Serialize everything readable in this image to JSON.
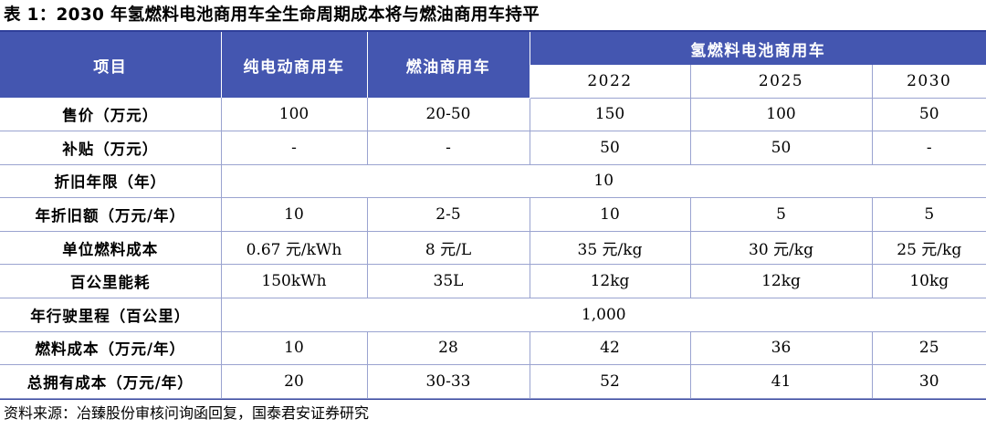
{
  "title": "表 1：2030 年氢燃料电池商用车全生命周期成本将与燃油商用车持平",
  "header": {
    "item": "项目",
    "ev": "纯电动商用车",
    "fuel": "燃油商用车",
    "hydrogen": "氢燃料电池商用车",
    "years": [
      "2022",
      "2025",
      "2030"
    ]
  },
  "rows": [
    {
      "label": "售价（万元）",
      "cells": [
        "100",
        "20-50",
        "150",
        "100",
        "50"
      ]
    },
    {
      "label": "补贴（万元）",
      "cells": [
        "-",
        "-",
        "50",
        "50",
        "-"
      ]
    },
    {
      "label": "折旧年限（年）",
      "merged": "10"
    },
    {
      "label": "年折旧额（万元/年）",
      "cells": [
        "10",
        "2-5",
        "10",
        "5",
        "5"
      ]
    },
    {
      "label": "单位燃料成本",
      "cells": [
        "0.67 元/kWh",
        "8 元/L",
        "35 元/kg",
        "30 元/kg",
        "25 元/kg"
      ]
    },
    {
      "label": "百公里能耗",
      "cells": [
        "150kWh",
        "35L",
        "12kg",
        "12kg",
        "10kg"
      ]
    },
    {
      "label": "年行驶里程（百公里）",
      "merged": "1,000"
    },
    {
      "label": "燃料成本（万元/年）",
      "cells": [
        "10",
        "28",
        "42",
        "36",
        "25"
      ]
    },
    {
      "label": "总拥有成本（万元/年）",
      "cells": [
        "20",
        "30-33",
        "52",
        "41",
        "30"
      ]
    }
  ],
  "source": "资料来源：冶臻股份审核问询函回复，国泰君安证券研究"
}
